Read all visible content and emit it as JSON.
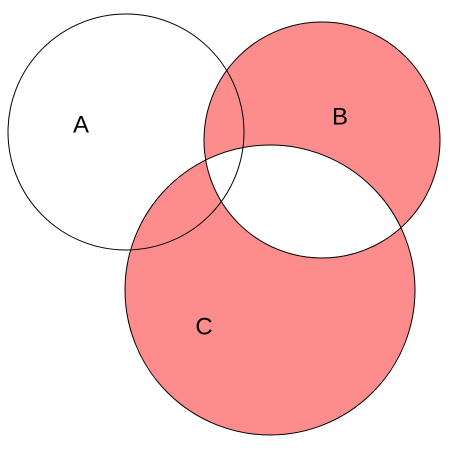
{
  "nodes": [
    {
      "label": "A"
    },
    {
      "label": "B"
    },
    {
      "label": "C"
    }
  ]
}
